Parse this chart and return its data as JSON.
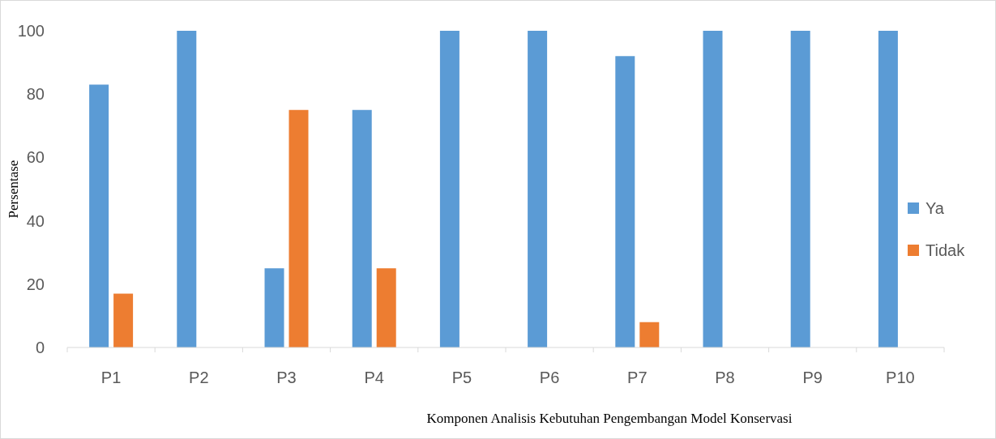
{
  "chart_data": {
    "type": "bar",
    "xlabel": "Komponen Analisis  Kebutuhan Pengembangan   Model Konservasi",
    "ylabel": "Persentase",
    "categories": [
      "P1",
      "P2",
      "P3",
      "P4",
      "P5",
      "P6",
      "P7",
      "P8",
      "P9",
      "P10"
    ],
    "series": [
      {
        "name": "Ya",
        "color": "#5b9bd5",
        "values": [
          83,
          100,
          25,
          75,
          100,
          100,
          92,
          100,
          100,
          100
        ]
      },
      {
        "name": "Tidak",
        "color": "#ed7d31",
        "values": [
          17,
          0,
          75,
          25,
          0,
          0,
          8,
          0,
          0,
          0
        ]
      }
    ],
    "ylim": [
      0,
      100
    ],
    "yticks": [
      0,
      20,
      40,
      60,
      80,
      100
    ],
    "grid": false,
    "legend": "right"
  }
}
